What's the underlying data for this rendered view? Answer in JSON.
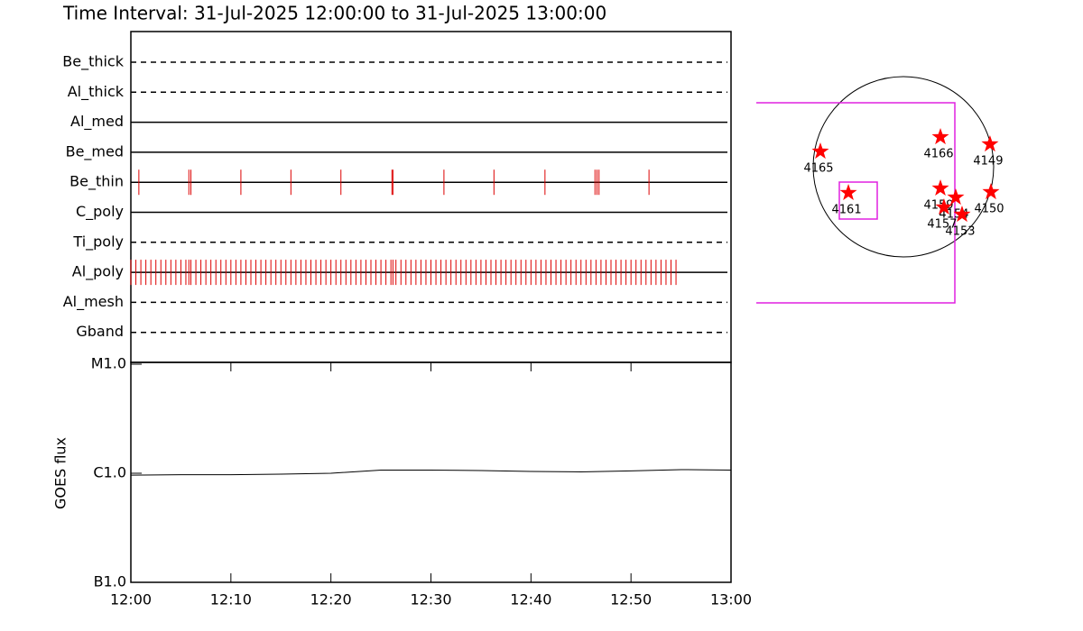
{
  "chart_data": [
    {
      "type": "timeline",
      "title": "Time Interval: 31-Jul-2025 12:00:00 to 31-Jul-2025 13:00:00",
      "xlim": [
        0,
        60
      ],
      "color": "#dd0000",
      "rows": [
        {
          "label": "Be_thick",
          "style": "dashed",
          "times": []
        },
        {
          "label": "Al_thick",
          "style": "dashed",
          "times": []
        },
        {
          "label": "Al_med",
          "style": "solid",
          "times": []
        },
        {
          "label": "Be_med",
          "style": "solid",
          "times": []
        },
        {
          "label": "Be_thin",
          "style": "solid",
          "times": [
            0.8,
            5.8,
            6.0,
            11.0,
            16.0,
            21.0,
            26.1,
            26.2,
            31.3,
            36.3,
            41.4,
            46.4,
            46.6,
            46.8,
            51.8
          ]
        },
        {
          "label": "C_poly",
          "style": "solid",
          "times": []
        },
        {
          "label": "Ti_poly",
          "style": "dashed",
          "times": []
        },
        {
          "label": "Al_poly",
          "style": "solid",
          "times": [
            0.0,
            0.5,
            1.0,
            1.5,
            2.0,
            2.5,
            3.0,
            3.5,
            4.0,
            4.5,
            5.0,
            5.5,
            5.8,
            6.0,
            6.5,
            7.0,
            7.5,
            8.0,
            8.5,
            9.0,
            9.5,
            10.0,
            10.5,
            11.0,
            11.5,
            12.0,
            12.5,
            13.0,
            13.5,
            14.0,
            14.5,
            15.0,
            15.5,
            16.0,
            16.5,
            17.0,
            17.5,
            18.0,
            18.5,
            19.0,
            19.5,
            20.0,
            20.5,
            21.0,
            21.5,
            22.0,
            22.5,
            23.0,
            23.5,
            24.0,
            24.5,
            25.0,
            25.5,
            26.0,
            26.2,
            26.5,
            27.0,
            27.5,
            28.0,
            28.5,
            29.0,
            29.5,
            30.0,
            30.5,
            31.0,
            31.5,
            32.0,
            32.5,
            33.0,
            33.5,
            34.0,
            34.5,
            35.0,
            35.5,
            36.0,
            36.5,
            37.0,
            37.5,
            38.0,
            38.5,
            39.0,
            39.5,
            40.0,
            40.5,
            41.0,
            41.5,
            42.0,
            42.5,
            43.0,
            43.5,
            44.0,
            44.5,
            45.0,
            45.5,
            46.0,
            46.5,
            47.0,
            47.5,
            48.0,
            48.5,
            49.0,
            49.5,
            50.0,
            50.5,
            51.0,
            51.5,
            52.0,
            52.5,
            53.0,
            53.5,
            54.0,
            54.5
          ]
        },
        {
          "label": "Al_mesh",
          "style": "dashed",
          "times": []
        },
        {
          "label": "Gband",
          "style": "dashed",
          "times": []
        }
      ]
    },
    {
      "type": "line",
      "ylabel": "GOES flux",
      "color": "#000000",
      "x": [
        0,
        5,
        10,
        15,
        20,
        25,
        30,
        35,
        40,
        45,
        50,
        55,
        60
      ],
      "values": [
        9.6e-07,
        9.7e-07,
        9.7e-07,
        9.8e-07,
        1e-06,
        1.07e-06,
        1.07e-06,
        1.06e-06,
        1.04e-06,
        1.03e-06,
        1.05e-06,
        1.08e-06,
        1.07e-06
      ],
      "xlim": [
        0,
        60
      ],
      "xticks": [
        {
          "value": 0,
          "label": "12:00"
        },
        {
          "value": 10,
          "label": "12:10"
        },
        {
          "value": 20,
          "label": "12:20"
        },
        {
          "value": 30,
          "label": "12:30"
        },
        {
          "value": 40,
          "label": "12:40"
        },
        {
          "value": 50,
          "label": "12:50"
        },
        {
          "value": 60,
          "label": "13:00"
        }
      ],
      "ylim": [
        1e-07,
        1e-05
      ],
      "yscale": "log",
      "yticks": [
        {
          "value": 1e-07,
          "label": "B1.0"
        },
        {
          "value": 1e-06,
          "label": "C1.0"
        },
        {
          "value": 1e-05,
          "label": "M1.0"
        }
      ]
    },
    {
      "type": "scatter",
      "color": "#ff0000",
      "xlim": [
        -1000,
        1000
      ],
      "ylim": [
        -1000,
        1000
      ],
      "labels": [
        "4165",
        "4166",
        "4149",
        "4161",
        "4159",
        "4154",
        "4150",
        "4157",
        "4153"
      ],
      "x": [
        -868,
        387,
        905,
        -575,
        387,
        547,
        915,
        424,
        613
      ],
      "y": [
        160,
        311,
        236,
        -273,
        -226,
        -321,
        -264,
        -424,
        -500
      ]
    }
  ]
}
